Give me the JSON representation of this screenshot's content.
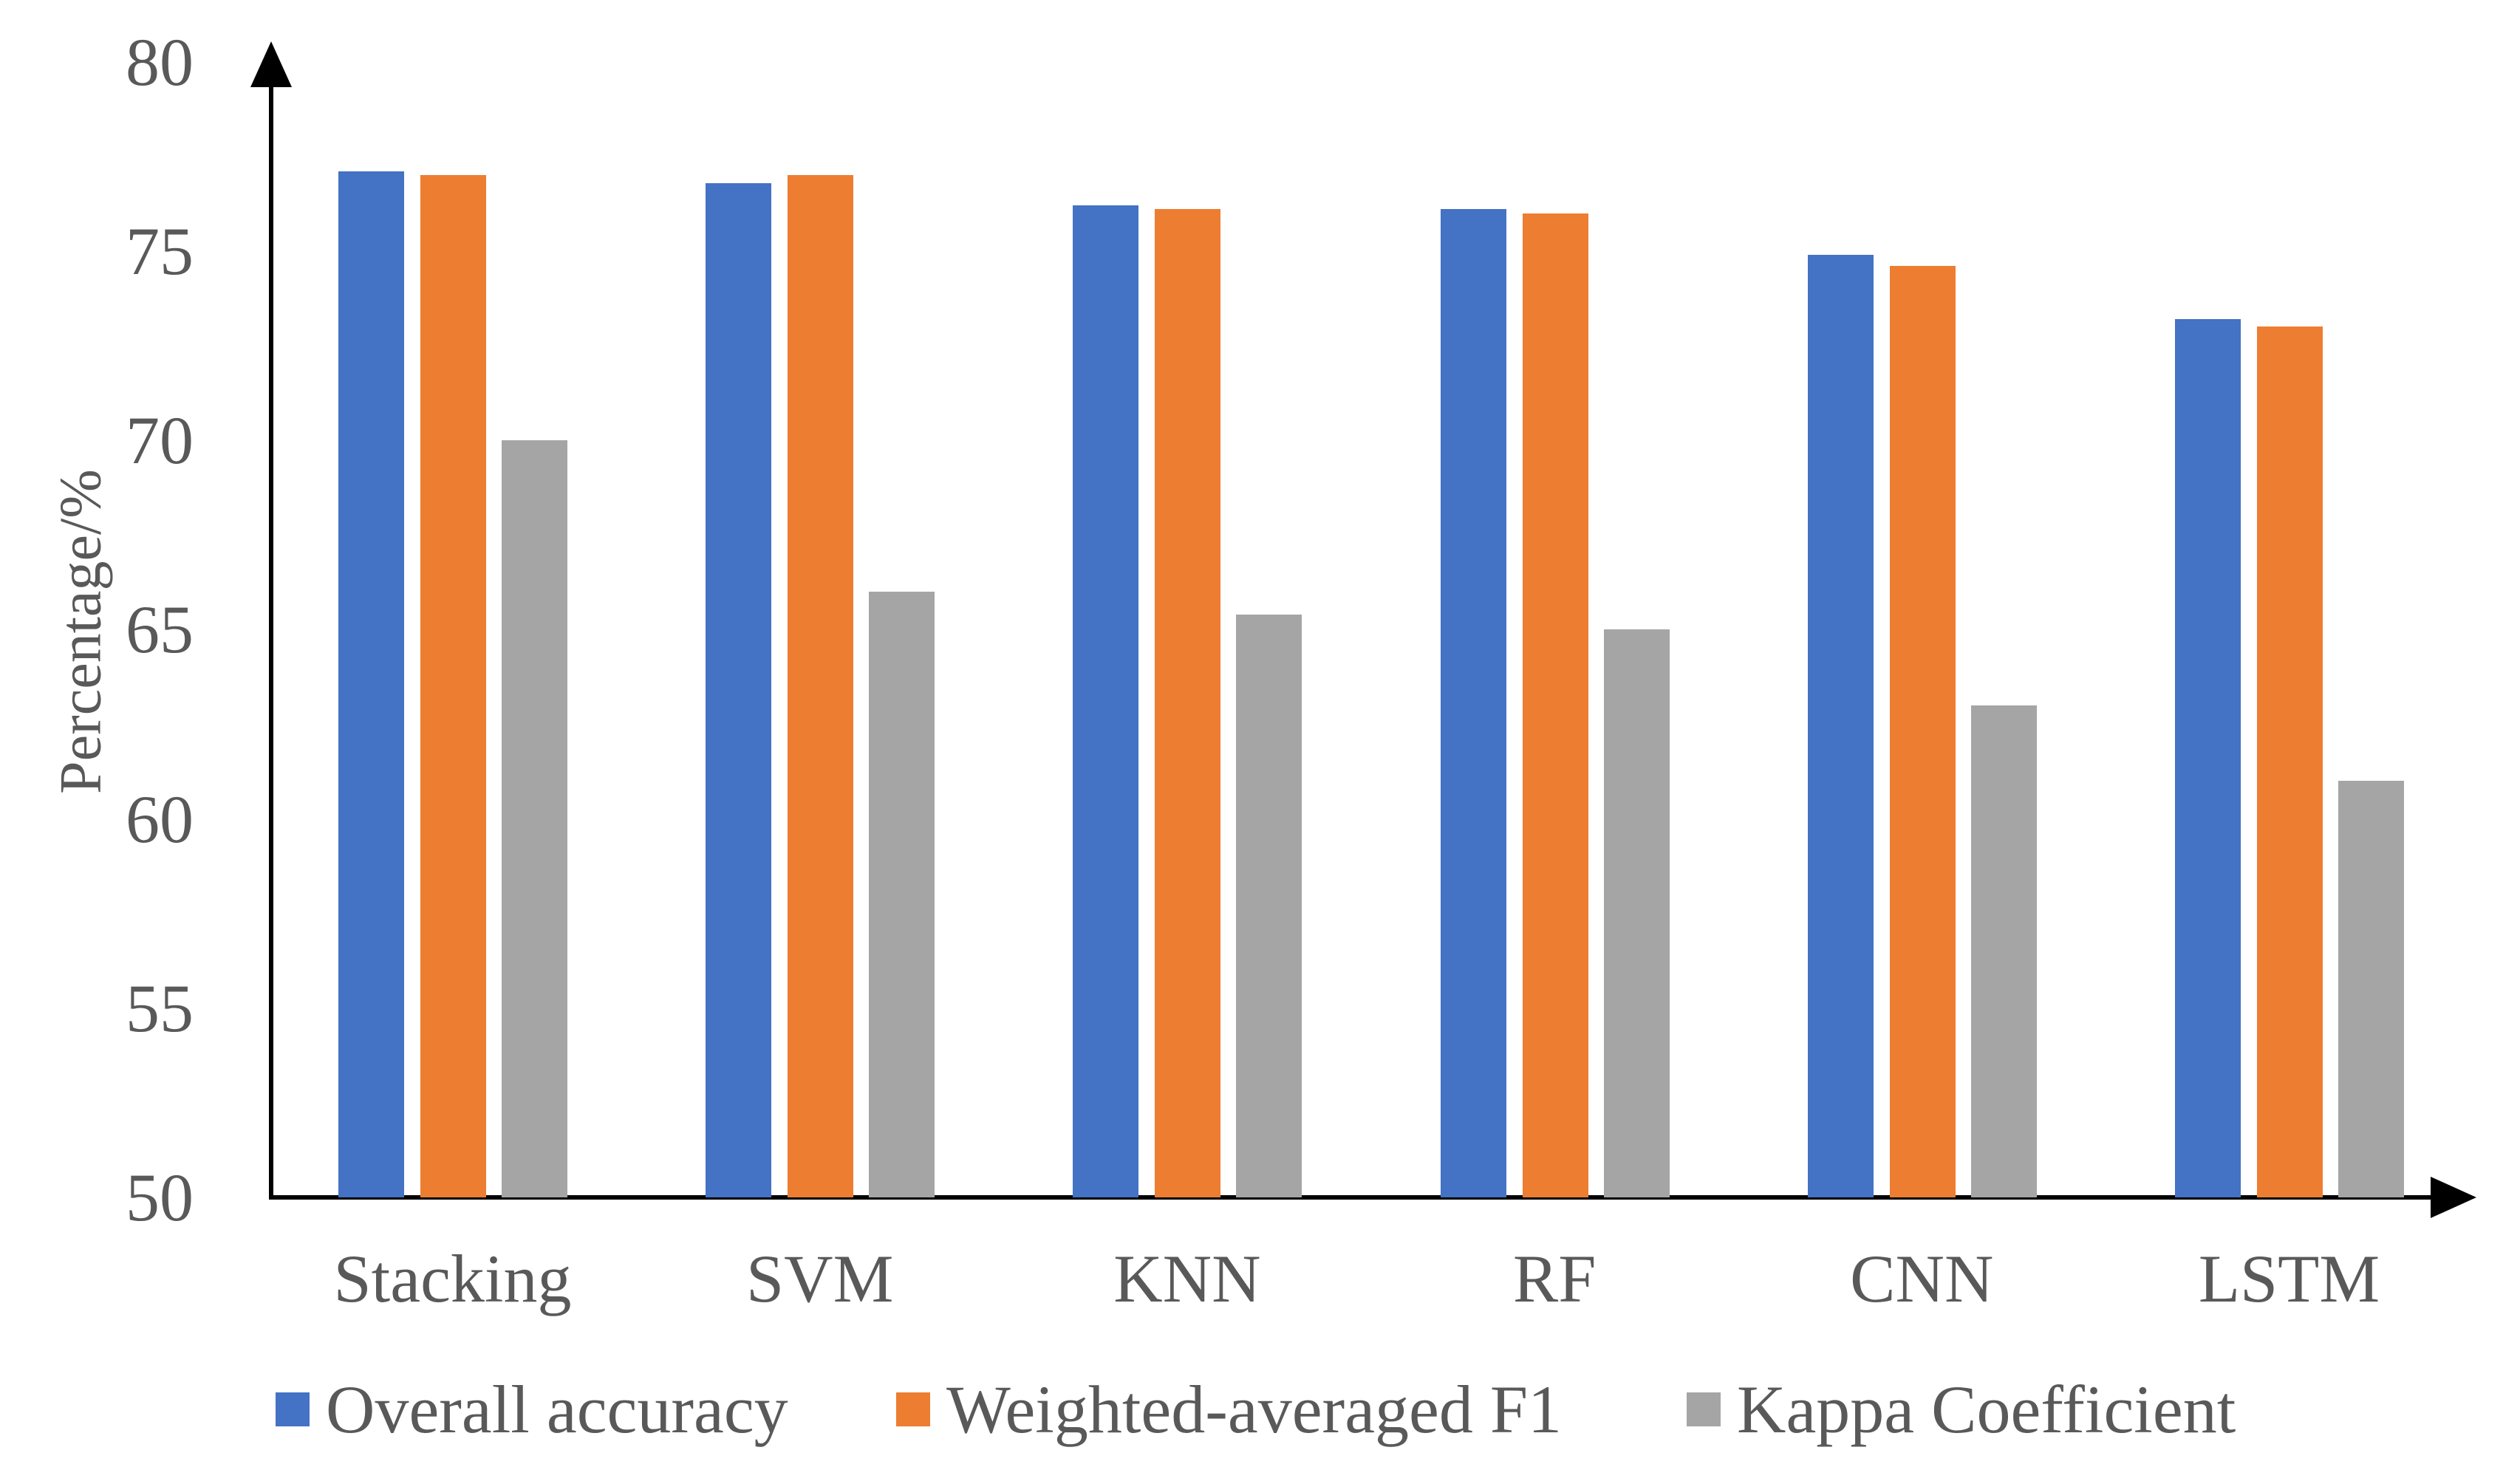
{
  "chart_data": {
    "type": "bar",
    "title": "",
    "xlabel": "",
    "ylabel": "Percentage/%",
    "ylim": [
      50,
      80
    ],
    "yticks": [
      50,
      55,
      60,
      65,
      70,
      75,
      80
    ],
    "grid": false,
    "legend_position": "bottom",
    "axis_color": "#000000",
    "text_color": "#595959",
    "categories": [
      "Stacking",
      "SVM",
      "KNN",
      "RF",
      "CNN",
      "LSTM"
    ],
    "series": [
      {
        "name": "Overall accuracy",
        "color": "#4472C4",
        "values": [
          77.1,
          76.8,
          76.2,
          76.1,
          74.9,
          73.2
        ]
      },
      {
        "name": "Weighted-averaged F1",
        "color": "#ED7D31",
        "values": [
          77.0,
          77.0,
          76.1,
          76.0,
          74.6,
          73.0
        ]
      },
      {
        "name": "Kappa Coefficient",
        "color": "#A5A5A5",
        "values": [
          70.0,
          66.0,
          65.4,
          65.0,
          63.0,
          61.0
        ]
      }
    ]
  }
}
